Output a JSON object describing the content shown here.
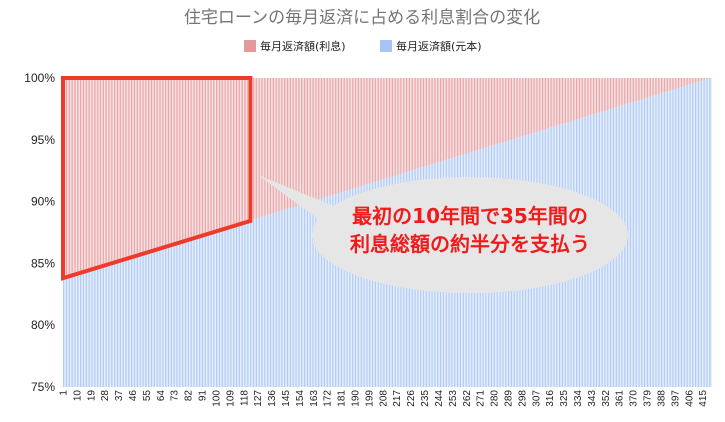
{
  "chart_data": {
    "type": "bar",
    "stacked": true,
    "normalized": true,
    "title": "住宅ローンの毎月返済に占める利息割合の変化",
    "x_start": 1,
    "x_end": 420,
    "x_tick_step": 9,
    "x_tick_labels": [
      "1",
      "10",
      "19",
      "28",
      "37",
      "46",
      "55",
      "64",
      "73",
      "82",
      "91",
      "100",
      "109",
      "118",
      "127",
      "136",
      "145",
      "154",
      "163",
      "172",
      "181",
      "190",
      "199",
      "208",
      "217",
      "226",
      "235",
      "244",
      "253",
      "262",
      "271",
      "280",
      "289",
      "298",
      "307",
      "316",
      "325",
      "334",
      "343",
      "352",
      "361",
      "370",
      "379",
      "388",
      "397",
      "406",
      "415"
    ],
    "series": [
      {
        "name": "毎月返済額(利息)",
        "color": "#e39a9c",
        "start": 0.162,
        "end": 0.0
      },
      {
        "name": "毎月返済額(元本)",
        "color": "#a7c4f2",
        "start": 0.838,
        "end": 1.0
      }
    ],
    "ylim": [
      0.75,
      1.0
    ],
    "y_tick_labels": [
      "75%",
      "80%",
      "85%",
      "90%",
      "95%",
      "100%"
    ],
    "grid": false,
    "legend_position": "top",
    "highlight": {
      "x_range": [
        1,
        120
      ],
      "color": "#ef3a2a"
    },
    "annotation": {
      "lines": [
        "最初の10年間で35年間の",
        "利息総額の約半分を支払う"
      ],
      "text_color": "#ef1c1c",
      "bubble_color": "#e6e6e6"
    }
  }
}
